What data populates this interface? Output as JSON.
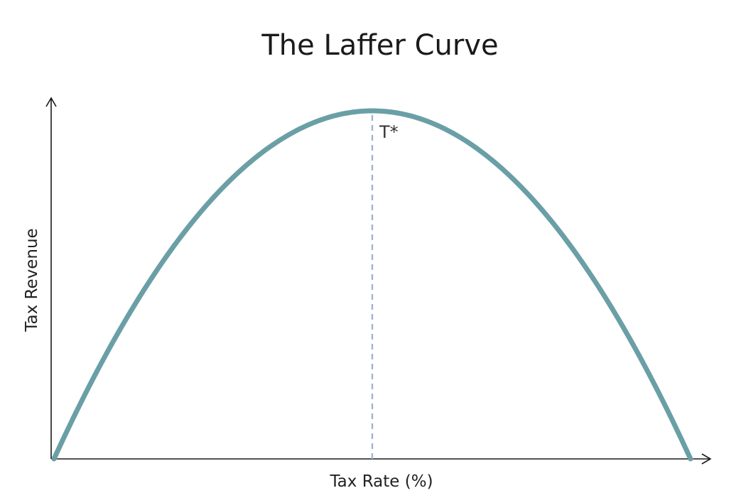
{
  "chart_data": {
    "type": "line",
    "title": "The Laffer Curve",
    "xlabel": "Tax Rate (%)",
    "ylabel": "Tax Revenue",
    "x_ticks_shown": false,
    "y_ticks_shown": false,
    "grid": false,
    "legend": "none",
    "xlim": [
      0,
      100
    ],
    "ylim": [
      0,
      100
    ],
    "series": [
      {
        "color": "#6a9fa6",
        "shape": "concave parabola",
        "x": [
          0,
          10,
          20,
          30,
          40,
          50,
          60,
          70,
          80,
          90,
          100
        ],
        "y": [
          0,
          36,
          64,
          84,
          96,
          100,
          96,
          84,
          64,
          36,
          0
        ]
      }
    ],
    "annotations": [
      {
        "label": "T*",
        "x": 50,
        "y": 100,
        "style": "dashed vertical reference line",
        "color": "#9fb4d0"
      }
    ],
    "axis_color": "#1a1a1a"
  }
}
